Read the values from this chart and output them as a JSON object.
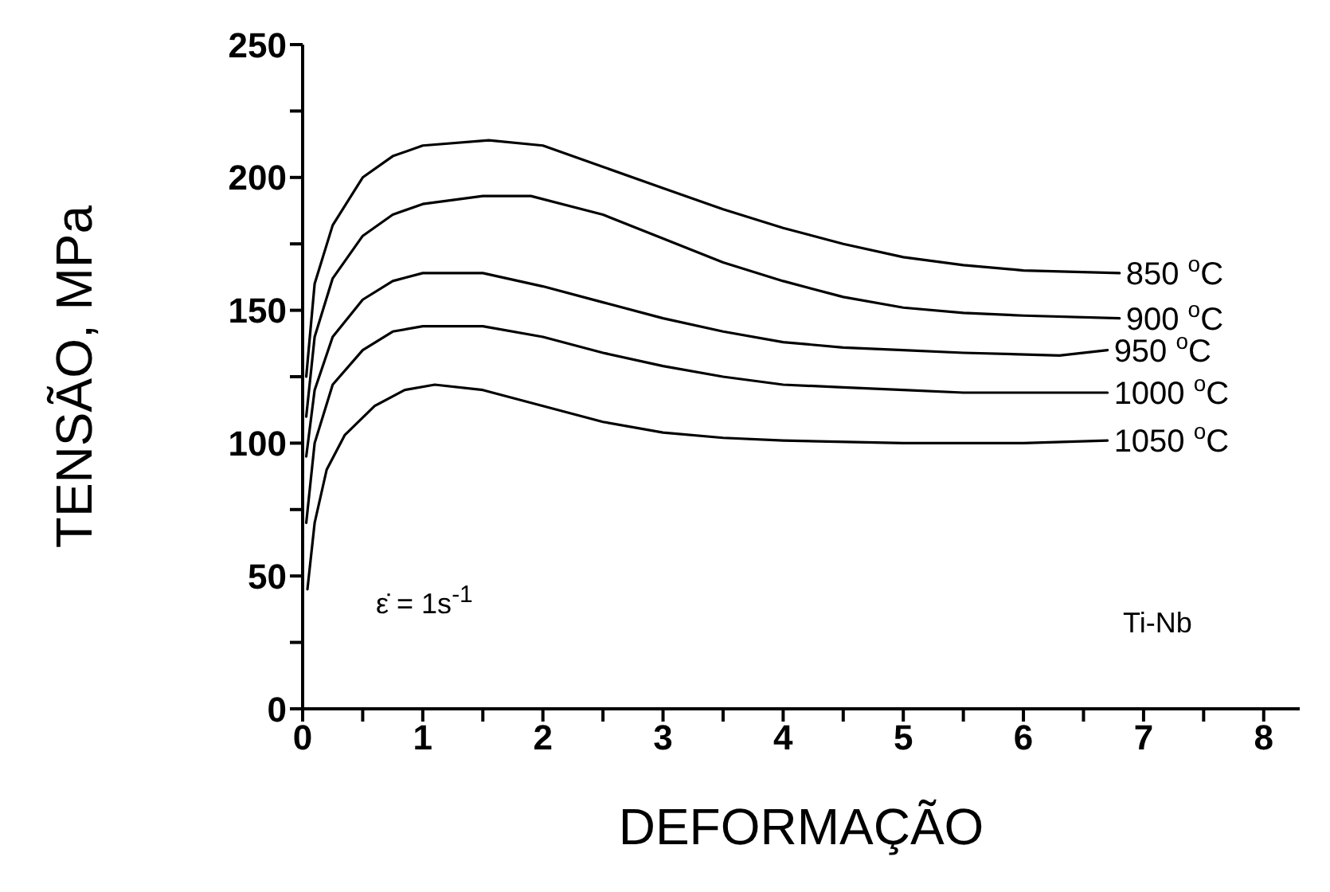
{
  "chart_data": {
    "type": "line",
    "xlabel": "DEFORMAÇÃO",
    "ylabel": "TENSÃO, MPa",
    "xlim": [
      0,
      8.3
    ],
    "xticks": [
      0,
      {
        "value": 0.5,
        "label": null
      },
      1,
      {
        "value": 1.5,
        "label": null
      },
      2,
      {
        "value": 2.5,
        "label": null
      },
      3,
      {
        "value": 3.5,
        "label": null
      },
      4,
      {
        "value": 4.5,
        "label": null
      },
      5,
      {
        "value": 5.5,
        "label": null
      },
      6,
      {
        "value": 6.5,
        "label": null
      },
      7,
      {
        "value": 7.5,
        "label": null
      },
      8
    ],
    "ylim": [
      0,
      250
    ],
    "yticks": [
      0,
      {
        "value": 25,
        "label": null
      },
      50,
      {
        "value": 75,
        "label": null
      },
      100,
      {
        "value": 125,
        "label": null
      },
      150,
      {
        "value": 175,
        "label": null
      },
      200,
      {
        "value": 225,
        "label": null
      },
      250
    ],
    "annotations": [
      "ε̇ = 1s$^{-1}$",
      "Ti-Nb"
    ],
    "series": [
      {
        "name": "850 $^{o}$C",
        "color": "#000000",
        "x": [
          0.03,
          0.1,
          0.25,
          0.5,
          0.75,
          1,
          1.55,
          2,
          2.5,
          3,
          3.5,
          4,
          4.5,
          5,
          5.5,
          6,
          6.8
        ],
        "values": [
          125,
          160,
          182,
          200,
          208,
          212,
          214,
          212,
          204,
          196,
          188,
          181,
          175,
          170,
          167,
          165,
          164
        ]
      },
      {
        "name": "900 $^{o}$C",
        "color": "#000000",
        "x": [
          0.03,
          0.1,
          0.25,
          0.5,
          0.75,
          1,
          1.5,
          1.9,
          2.5,
          3,
          3.5,
          4,
          4.5,
          5,
          5.5,
          6,
          6.8
        ],
        "values": [
          110,
          140,
          162,
          178,
          186,
          190,
          193,
          193,
          186,
          177,
          168,
          161,
          155,
          151,
          149,
          148,
          147
        ]
      },
      {
        "name": "950 $^{o}$C",
        "color": "#000000",
        "x": [
          0.03,
          0.1,
          0.25,
          0.5,
          0.75,
          1,
          1.5,
          2,
          2.5,
          3,
          3.5,
          4,
          4.5,
          5,
          5.5,
          6.3,
          6.7
        ],
        "values": [
          95,
          120,
          140,
          154,
          161,
          164,
          164,
          159,
          153,
          147,
          142,
          138,
          136,
          135,
          134,
          133,
          135
        ]
      },
      {
        "name": "1000 $^{o}$C",
        "color": "#000000",
        "x": [
          0.03,
          0.1,
          0.25,
          0.5,
          0.75,
          1,
          1.5,
          2,
          2.5,
          3,
          3.5,
          4,
          4.5,
          5,
          5.5,
          6.7
        ],
        "values": [
          70,
          100,
          122,
          135,
          142,
          144,
          144,
          140,
          134,
          129,
          125,
          122,
          121,
          120,
          119,
          119
        ]
      },
      {
        "name": "1050 $^{o}$C",
        "color": "#000000",
        "x": [
          0.04,
          0.1,
          0.2,
          0.35,
          0.6,
          0.85,
          1.1,
          1.5,
          2,
          2.5,
          3,
          3.5,
          4,
          5,
          6,
          6.7
        ],
        "values": [
          45,
          70,
          90,
          103,
          114,
          120,
          122,
          120,
          114,
          108,
          104,
          102,
          101,
          100,
          100,
          101
        ]
      }
    ]
  }
}
